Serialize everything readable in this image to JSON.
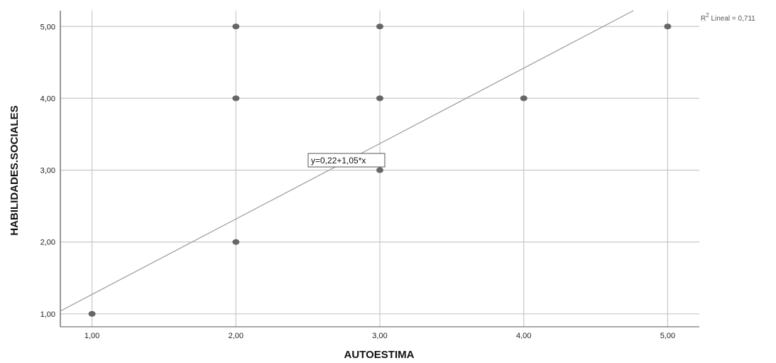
{
  "chart_data": {
    "type": "scatter",
    "title": "",
    "xlabel": "AUTOESTIMA",
    "ylabel": "HABILIDADES.SOCIALES",
    "xlim": [
      0.78,
      5.22
    ],
    "ylim": [
      0.82,
      5.22
    ],
    "x_ticks": [
      "1,00",
      "2,00",
      "3,00",
      "4,00",
      "5,00"
    ],
    "y_ticks": [
      "1,00",
      "2,00",
      "3,00",
      "4,00",
      "5,00"
    ],
    "grid": true,
    "points": [
      {
        "x": 1,
        "y": 1
      },
      {
        "x": 2,
        "y": 2
      },
      {
        "x": 2,
        "y": 4
      },
      {
        "x": 2,
        "y": 5
      },
      {
        "x": 3,
        "y": 3
      },
      {
        "x": 3,
        "y": 4
      },
      {
        "x": 3,
        "y": 5
      },
      {
        "x": 4,
        "y": 4
      },
      {
        "x": 5,
        "y": 5
      }
    ],
    "fit_line": {
      "intercept": 0.22,
      "slope": 1.05
    },
    "fit_equation_label": "y=0,22+1,05*x",
    "r2_label_prefix": "R",
    "r2_label_sup": "2",
    "r2_label_rest": " Lineal = 0,711",
    "colors": {
      "points": "#666666",
      "fit_line": "#999999",
      "grid": "#c8c8c8",
      "axis": "#555555"
    }
  }
}
